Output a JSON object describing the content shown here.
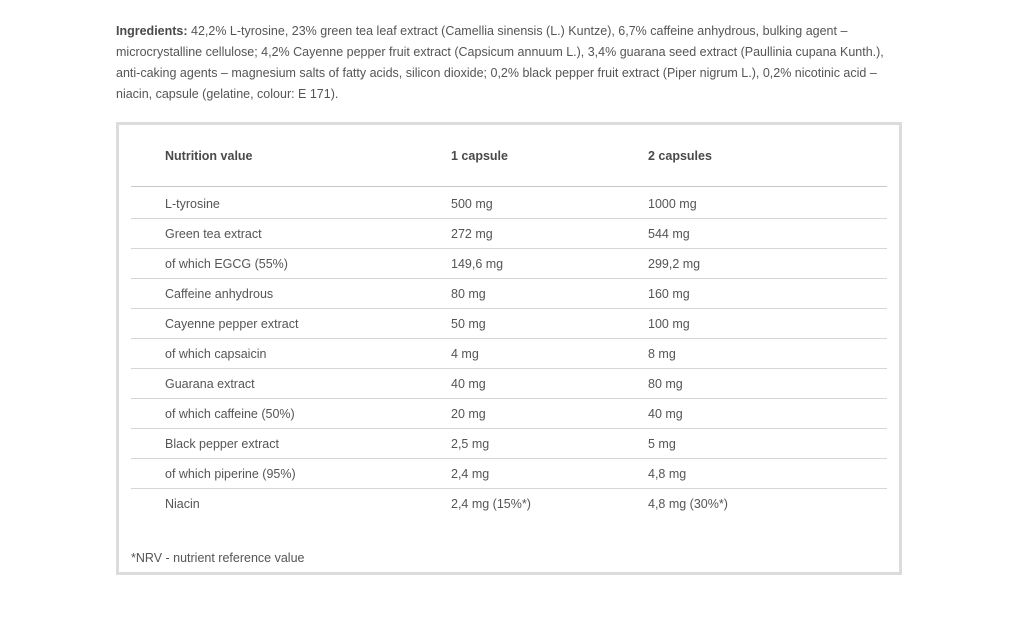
{
  "ingredients": {
    "label": "Ingredients:",
    "text": " 42,2% L-tyrosine, 23% green tea leaf extract (Camellia sinensis (L.) Kuntze), 6,7% caffeine anhydrous, bulking agent – microcrystalline cellulose; 4,2% Cayenne pepper fruit extract (Capsicum annuum L.), 3,4% guarana seed extract (Paullinia cupana Kunth.), anti-caking agents – magnesium salts of fatty acids, silicon dioxide; 0,2% black pepper fruit extract (Piper nigrum L.), 0,2% nicotinic acid – niacin, capsule (gelatine, colour: E 171)."
  },
  "table": {
    "headers": [
      "Nutrition value",
      "1 capsule",
      "2 capsules"
    ],
    "rows": [
      [
        "L-tyrosine",
        "500 mg",
        "1000 mg"
      ],
      [
        "Green tea extract",
        "272 mg",
        "544 mg"
      ],
      [
        "of which EGCG (55%)",
        "149,6 mg",
        "299,2 mg"
      ],
      [
        "Caffeine anhydrous",
        "80 mg",
        "160 mg"
      ],
      [
        "Cayenne pepper extract",
        "50 mg",
        "100 mg"
      ],
      [
        "of which capsaicin",
        "4 mg",
        "8 mg"
      ],
      [
        "Guarana extract",
        "40 mg",
        "80 mg"
      ],
      [
        "of which caffeine (50%)",
        "20 mg",
        "40 mg"
      ],
      [
        "Black pepper extract",
        "2,5 mg",
        "5 mg"
      ],
      [
        "of which piperine (95%)",
        "2,4 mg",
        "4,8 mg"
      ],
      [
        "Niacin",
        "2,4 mg (15%*)",
        "4,8 mg (30%*)"
      ]
    ],
    "footnote": "*NRV - nutrient reference value"
  }
}
